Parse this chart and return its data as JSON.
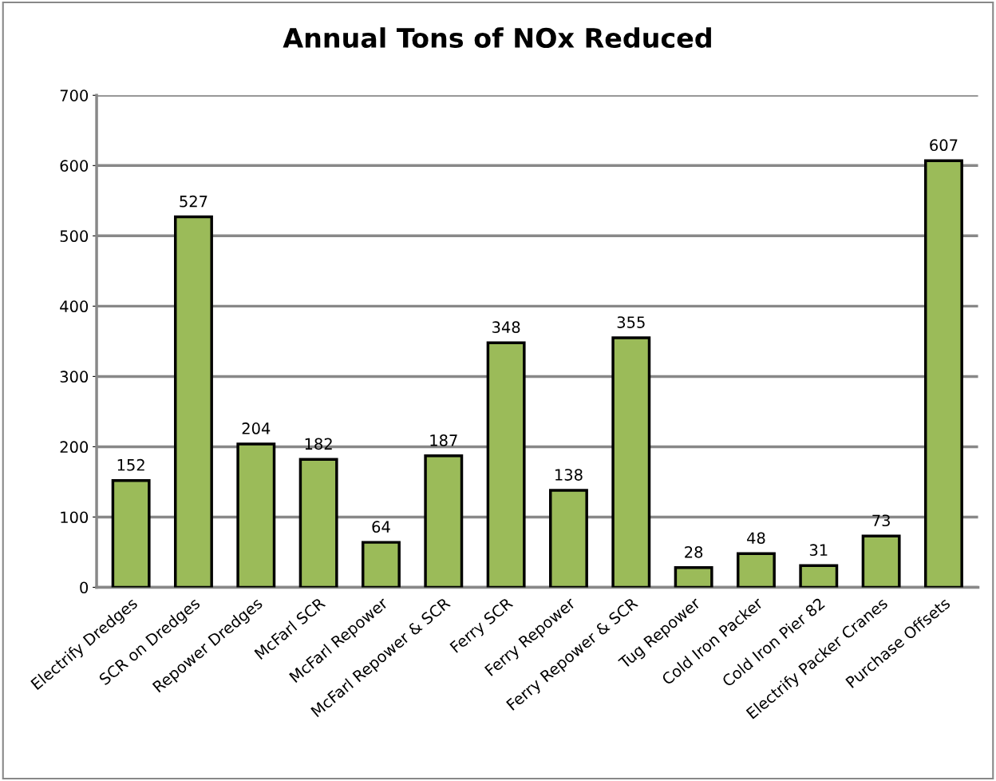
{
  "chart_data": {
    "type": "bar",
    "title": "Annual Tons of NOx Reduced",
    "categories": [
      "Electrify Dredges",
      "SCR on Dredges",
      "Repower Dredges",
      "McFarl SCR",
      "McFarl Repower",
      "McFarl Repower & SCR",
      "Ferry SCR",
      "Ferry Repower",
      "Ferry Repower & SCR",
      "Tug Repower",
      "Cold Iron Packer",
      "Cold Iron Pier 82",
      "Electrify Packer Cranes",
      "Purchase Offsets"
    ],
    "values": [
      152,
      527,
      204,
      182,
      64,
      187,
      348,
      138,
      355,
      28,
      48,
      31,
      73,
      607
    ],
    "color": "#9bbb59",
    "ylim": [
      0,
      700
    ],
    "yticks": [
      0,
      100,
      200,
      300,
      400,
      500,
      600,
      700
    ],
    "grid": "y",
    "data_labels": true
  }
}
